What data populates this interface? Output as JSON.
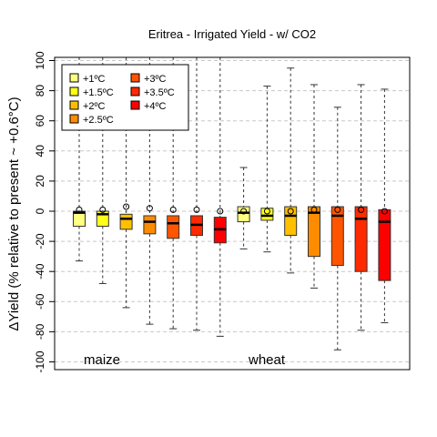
{
  "chart_data": {
    "type": "boxplot",
    "title": "Eritrea - Irrigated Yield - w/ CO2",
    "ylabel": "ΔYield (% relative to present ~ +0.6°C)",
    "xlabel": "",
    "ylim": [
      -105,
      105
    ],
    "yticks": [
      -100,
      -80,
      -60,
      -40,
      -20,
      0,
      20,
      40,
      60,
      80,
      100
    ],
    "grid": true,
    "legend_position": "top-left",
    "groups": [
      {
        "label": "maize",
        "start": 1,
        "end": 8
      },
      {
        "label": "wheat",
        "start": 9,
        "end": 16
      }
    ],
    "series": [
      {
        "name": "+1ºC",
        "color": "#FFFF80"
      },
      {
        "name": "+1.5ºC",
        "color": "#FFFF1A"
      },
      {
        "name": "+2ºC",
        "color": "#FFC000"
      },
      {
        "name": "+2.5ºC",
        "color": "#FF8C00"
      },
      {
        "name": "+3ºC",
        "color": "#FF5500"
      },
      {
        "name": "+3.5ºC",
        "color": "#FF2A00"
      },
      {
        "name": "+4ºC",
        "color": "#FF0000"
      }
    ],
    "boxes": [
      {
        "group": "maize",
        "series": 0,
        "min": -33,
        "q1": -10,
        "median": -1,
        "q3": 0,
        "max": 105,
        "outlier": 1
      },
      {
        "group": "maize",
        "series": 1,
        "min": -48,
        "q1": -10,
        "median": -2,
        "q3": 0,
        "max": 105,
        "outlier": 1
      },
      {
        "group": "maize",
        "series": 2,
        "min": -64,
        "q1": -12,
        "median": -5,
        "q3": -2,
        "max": 105,
        "outlier": 3
      },
      {
        "group": "maize",
        "series": 3,
        "min": -75,
        "q1": -15,
        "median": -7,
        "q3": -3,
        "max": 105,
        "outlier": 2
      },
      {
        "group": "maize",
        "series": 4,
        "min": -78,
        "q1": -18,
        "median": -8,
        "q3": -3,
        "max": 105,
        "outlier": 1
      },
      {
        "group": "maize",
        "series": 5,
        "min": -79,
        "q1": -16,
        "median": -9,
        "q3": -3,
        "max": 105,
        "outlier": 1
      },
      {
        "group": "maize",
        "series": 6,
        "min": -83,
        "q1": -21,
        "median": -12,
        "q3": -4,
        "max": 105,
        "outlier": 0
      },
      {
        "group": "wheat",
        "series": 0,
        "min": -25,
        "q1": -7,
        "median": -1,
        "q3": 3,
        "max": 29,
        "outlier": 0
      },
      {
        "group": "wheat",
        "series": 1,
        "min": -27,
        "q1": -6,
        "median": -3,
        "q3": 2,
        "max": 83,
        "outlier": 0
      },
      {
        "group": "wheat",
        "series": 2,
        "min": -41,
        "q1": -16,
        "median": -3,
        "q3": 3,
        "max": 95,
        "outlier": 0
      },
      {
        "group": "wheat",
        "series": 3,
        "min": -51,
        "q1": -30,
        "median": -1,
        "q3": 3,
        "max": 84,
        "outlier": 1
      },
      {
        "group": "wheat",
        "series": 4,
        "min": -92,
        "q1": -36,
        "median": -3,
        "q3": 3,
        "max": 69,
        "outlier": 1
      },
      {
        "group": "wheat",
        "series": 5,
        "min": -79,
        "q1": -40,
        "median": -5,
        "q3": 3,
        "max": 84,
        "outlier": 1
      },
      {
        "group": "wheat",
        "series": 6,
        "min": -74,
        "q1": -46,
        "median": -7,
        "q3": 1,
        "max": 81,
        "outlier": 0
      }
    ]
  }
}
